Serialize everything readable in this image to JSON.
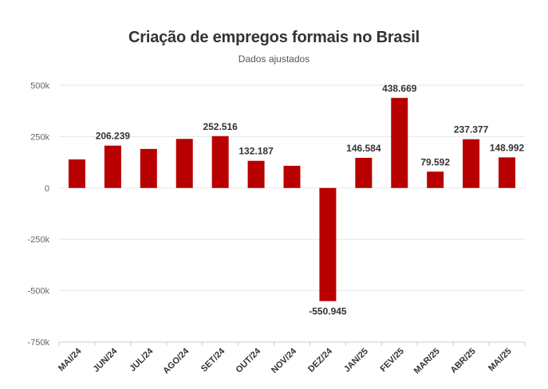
{
  "chart_data": {
    "type": "bar",
    "title": "Criação de empregos formais no Brasil",
    "subtitle": "Dados ajustados",
    "categories": [
      "MAI/24",
      "JUN/24",
      "JUL/24",
      "AGO/24",
      "SET/24",
      "OUT/24",
      "NOV/24",
      "DEZ/24",
      "JAN/25",
      "FEV/25",
      "MAR/25",
      "ABR/25",
      "MAI/25"
    ],
    "values": [
      139000,
      206239,
      190000,
      239000,
      252516,
      132187,
      108000,
      -550945,
      146584,
      438669,
      79592,
      237377,
      148992
    ],
    "data_labels": [
      "",
      "206.239",
      "",
      "",
      "252.516",
      "132.187",
      "",
      "-550.945",
      "146.584",
      "438.669",
      "79.592",
      "237.377",
      "148.992"
    ],
    "ylim": [
      -750000,
      500000
    ],
    "yticks": [
      500000,
      250000,
      0,
      -250000,
      -500000,
      -750000
    ],
    "ytick_labels": [
      "500k",
      "250k",
      "0",
      "-250k",
      "-500k",
      "-750k"
    ],
    "xlabel": "",
    "ylabel": "",
    "grid": true,
    "bar_color": "#b80000"
  }
}
